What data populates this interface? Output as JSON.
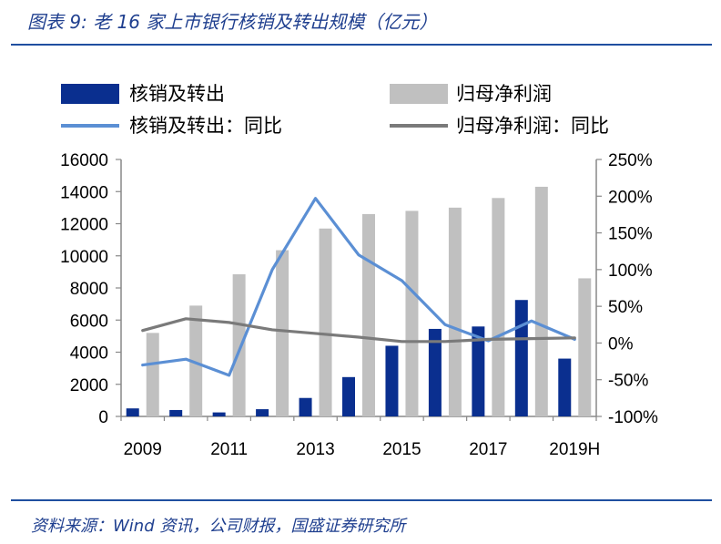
{
  "figure": {
    "title": "图表 9:  老 16 家上市银行核销及转出规模（亿元）",
    "source": "资料来源：Wind 资讯，公司财报，国盛证券研究所"
  },
  "chart_data": {
    "type": "bar",
    "title": "",
    "xlabel": "",
    "ylabel": "",
    "categories": [
      "2009",
      "2010",
      "2011",
      "2012",
      "2013",
      "2014",
      "2015",
      "2016",
      "2017",
      "2018",
      "2019H"
    ],
    "x_tick_labels": [
      "2009",
      "2011",
      "2013",
      "2015",
      "2017",
      "2019H"
    ],
    "ylim": [
      0,
      16000
    ],
    "y_ticks": [
      "0",
      "2000",
      "4000",
      "6000",
      "8000",
      "10000",
      "12000",
      "14000",
      "16000"
    ],
    "y2lim": [
      -1.0,
      2.5
    ],
    "y2_ticks": [
      "-100%",
      "-50%",
      "0%",
      "50%",
      "100%",
      "150%",
      "200%",
      "250%"
    ],
    "legend_position": "top",
    "grid": false,
    "series": [
      {
        "name": "核销及转出",
        "kind": "bar",
        "axis": "left",
        "color": "#0a2f8f",
        "values": [
          500,
          400,
          250,
          450,
          1150,
          2450,
          4400,
          5450,
          5600,
          7250,
          3600
        ]
      },
      {
        "name": "归母净利润",
        "kind": "bar",
        "axis": "left",
        "color": "#c0c0c0",
        "values": [
          5200,
          6900,
          8850,
          10350,
          11700,
          12600,
          12800,
          13000,
          13600,
          14300,
          8600
        ]
      },
      {
        "name": "核销及转出：同比",
        "kind": "line",
        "axis": "right",
        "color": "#5b8fd4",
        "values": [
          -0.3,
          -0.22,
          -0.44,
          1.0,
          1.97,
          1.2,
          0.85,
          0.25,
          0.03,
          0.3,
          0.05
        ]
      },
      {
        "name": "归母净利润：同比",
        "kind": "line",
        "axis": "right",
        "color": "#7a7a7a",
        "values": [
          0.17,
          0.33,
          0.28,
          0.18,
          0.13,
          0.08,
          0.02,
          0.02,
          0.05,
          0.06,
          0.07
        ]
      }
    ]
  }
}
